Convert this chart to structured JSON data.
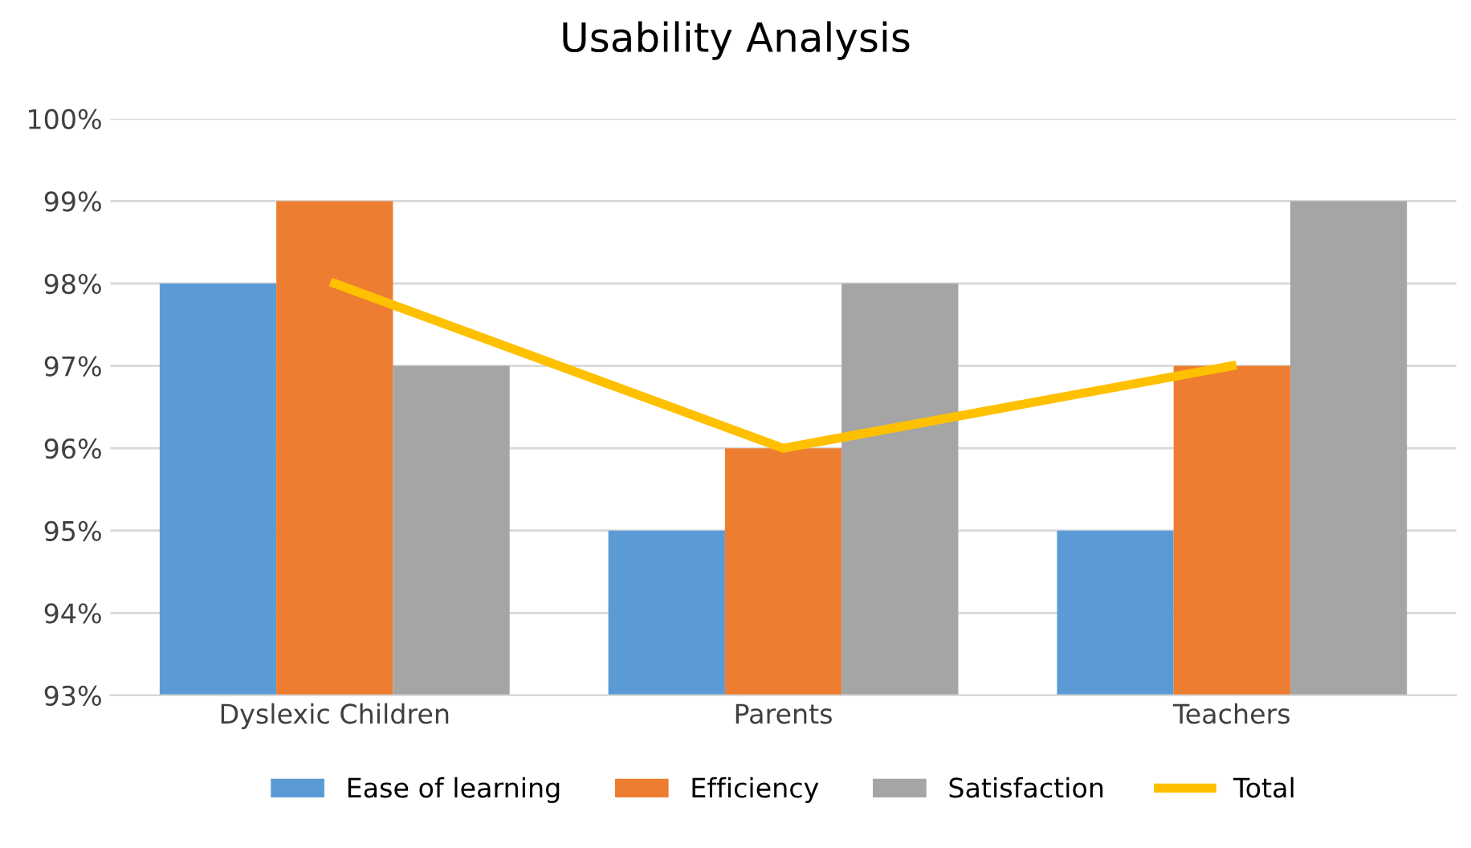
{
  "chart_data": {
    "type": "bar",
    "title": "Usability Analysis",
    "categories": [
      "Dyslexic Children",
      "Parents",
      "Teachers"
    ],
    "series": [
      {
        "name": "Ease of learning",
        "color": "#5b9bd5",
        "values": [
          98,
          95,
          95
        ]
      },
      {
        "name": "Efficiency",
        "color": "#ed7d31",
        "values": [
          99,
          96,
          97
        ]
      },
      {
        "name": "Satisfaction",
        "color": "#a5a5a5",
        "values": [
          97,
          98,
          99
        ]
      },
      {
        "name": "Total",
        "type": "line",
        "color": "#ffc000",
        "values": [
          98,
          96,
          97
        ]
      }
    ],
    "ylim": [
      93,
      100
    ],
    "yticks": [
      {
        "value": 93,
        "label": "93%"
      },
      {
        "value": 94,
        "label": "94%"
      },
      {
        "value": 95,
        "label": "95%"
      },
      {
        "value": 96,
        "label": "96%"
      },
      {
        "value": 97,
        "label": "97%"
      },
      {
        "value": 98,
        "label": "98%"
      },
      {
        "value": 99,
        "label": "99%"
      },
      {
        "value": 100,
        "label": "100%"
      }
    ],
    "grid": "y",
    "legend": "bottom",
    "marker": "none",
    "line_style": "solid"
  }
}
